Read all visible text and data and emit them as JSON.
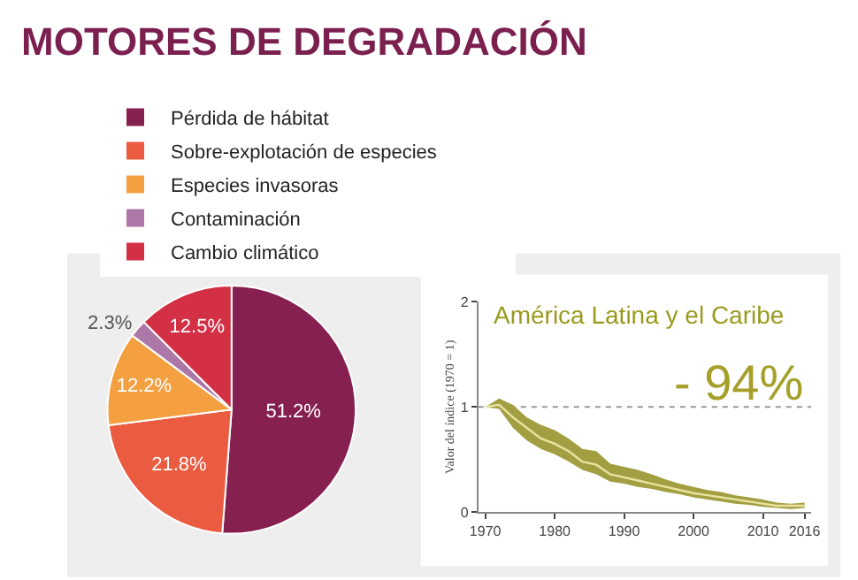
{
  "chart_data": [
    {
      "type": "pie",
      "title": "MOTORES DE DEGRADACIÓN",
      "categories": [
        "Pérdida de hábitat",
        "Sobre-explotación de especies",
        "Especies invasoras",
        "Contaminación",
        "Cambio climático"
      ],
      "values": [
        51.2,
        21.8,
        12.2,
        2.3,
        12.5
      ],
      "value_labels": [
        "51.2%",
        "21.8%",
        "12.2%",
        "2.3%",
        "12.5%"
      ],
      "colors": [
        "#862050",
        "#ea5b40",
        "#f4a040",
        "#ad78a8",
        "#d33045"
      ],
      "legend": "top"
    },
    {
      "type": "line",
      "title": "América Latina y el Caribe",
      "ylabel": "Valor del índice (1970 = 1)",
      "x": [
        1970,
        1972,
        1974,
        1976,
        1978,
        1980,
        1982,
        1984,
        1986,
        1988,
        1990,
        1992,
        1994,
        1996,
        1998,
        2000,
        2002,
        2004,
        2006,
        2008,
        2010,
        2012,
        2014,
        2016
      ],
      "series": [
        {
          "color": "#e8e4a0",
          "values": [
            1.0,
            1.02,
            0.9,
            0.8,
            0.7,
            0.65,
            0.58,
            0.48,
            0.45,
            0.36,
            0.33,
            0.3,
            0.27,
            0.24,
            0.21,
            0.18,
            0.16,
            0.14,
            0.12,
            0.1,
            0.08,
            0.06,
            0.06,
            0.06
          ],
          "upper": [
            1.0,
            1.08,
            1.02,
            0.9,
            0.83,
            0.78,
            0.7,
            0.6,
            0.58,
            0.46,
            0.43,
            0.4,
            0.36,
            0.31,
            0.27,
            0.24,
            0.21,
            0.19,
            0.16,
            0.14,
            0.12,
            0.09,
            0.08,
            0.09
          ],
          "lower": [
            1.0,
            0.98,
            0.8,
            0.68,
            0.6,
            0.55,
            0.48,
            0.4,
            0.36,
            0.29,
            0.27,
            0.24,
            0.22,
            0.19,
            0.17,
            0.14,
            0.12,
            0.1,
            0.08,
            0.07,
            0.05,
            0.04,
            0.03,
            0.04
          ]
        }
      ],
      "xlim": [
        1969,
        2017
      ],
      "xticks": [
        1970,
        1980,
        1990,
        2000,
        2010,
        2016
      ],
      "ylim": [
        0,
        2
      ],
      "yticks": [
        0,
        1,
        2
      ],
      "ref_lines": [
        {
          "axis": "y",
          "value": 1,
          "color": "#999999",
          "line_style": "dotted"
        }
      ],
      "annotations": [
        "- 94%"
      ],
      "grid": false,
      "legend": false
    }
  ]
}
